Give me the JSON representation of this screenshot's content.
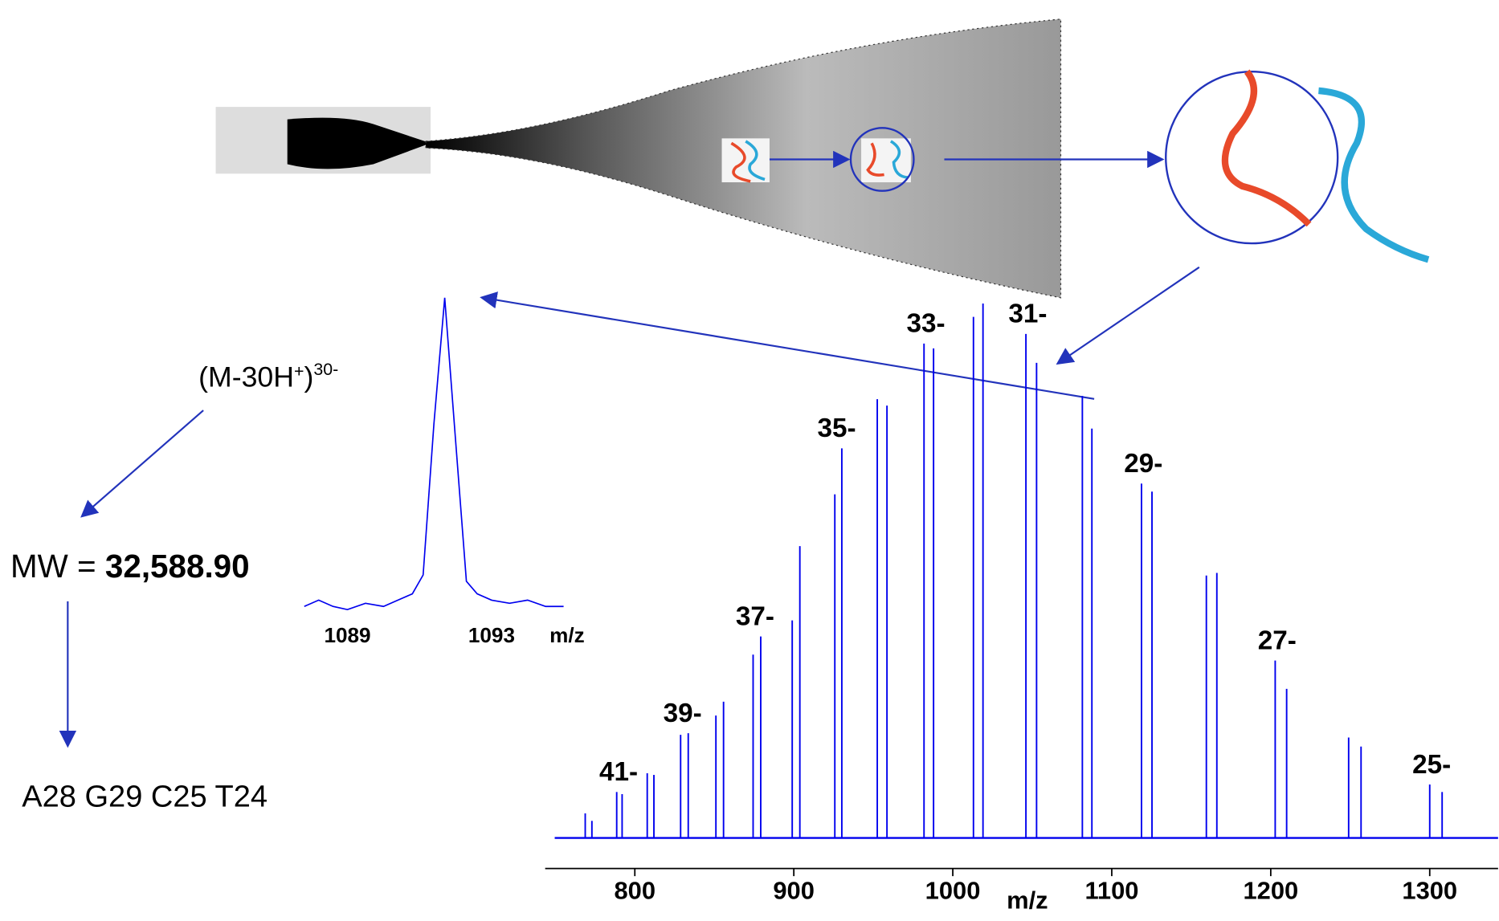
{
  "chart_data": [
    {
      "type": "stem",
      "color": "#0000ee",
      "x": [
        768.8,
        773,
        788.6,
        792,
        807.8,
        812,
        828.8,
        833.6,
        851,
        855.8,
        874.4,
        879.2,
        899,
        903.8,
        925.8,
        930.2,
        952.5,
        958.6,
        981.9,
        987.9,
        1013,
        1019,
        1046,
        1052.7,
        1081.5,
        1087.5,
        1118.7,
        1125.3,
        1159.5,
        1166.1,
        1202.8,
        1210,
        1249,
        1256.8,
        1300,
        1307.8
      ],
      "values": [
        4.6,
        3.2,
        8.6,
        8.2,
        12.1,
        11.8,
        19.3,
        19.6,
        22.9,
        25.5,
        34.3,
        37.7,
        40.7,
        54.6,
        64.3,
        72.9,
        82.1,
        80.9,
        92.5,
        91.6,
        97.5,
        100,
        94.3,
        88.9,
        82.7,
        76.6,
        66.3,
        64.8,
        49.1,
        49.6,
        33.2,
        27.9,
        18.8,
        17.1,
        10,
        8.6
      ],
      "annotations": [
        "41-",
        "39-",
        "37-",
        "35-",
        "33-",
        "31-",
        "29-",
        "27-",
        "25-"
      ],
      "xlim": [
        743.6,
        1343
      ],
      "ylim": [
        0,
        100
      ],
      "xticks": [
        800,
        900,
        1000,
        1100,
        1200,
        1300
      ],
      "x_label": "m/z"
    },
    {
      "type": "line",
      "color": "#0000ee",
      "x": [
        1087.8,
        1088.2,
        1088.6,
        1089,
        1089.5,
        1090,
        1090.4,
        1090.8,
        1091.1,
        1091.4,
        1091.7,
        1092,
        1092.3,
        1092.6,
        1093,
        1093.5,
        1094,
        1094.5,
        1095
      ],
      "values": [
        2,
        4,
        2,
        1,
        3,
        2,
        4,
        6,
        12,
        60,
        100,
        55,
        10,
        6,
        4,
        3,
        4,
        2,
        2
      ],
      "xlim": [
        1087.65,
        1095.15
      ],
      "ylim": [
        0,
        100
      ],
      "xticks": [
        1089,
        1093
      ],
      "x_label": "m/z"
    }
  ],
  "labels": {
    "ion": [
      "(M-30H",
      "+",
      ")",
      "30-"
    ],
    "mw_prefix": "MW = ",
    "mw_value": "32,588.90",
    "composition": "A28 G29 C25 T24"
  }
}
